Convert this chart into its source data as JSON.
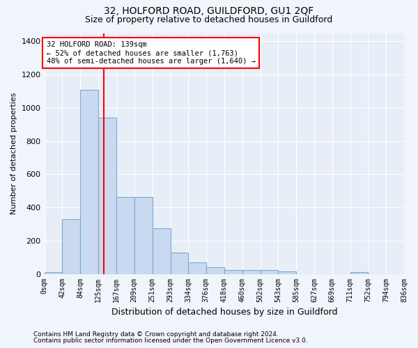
{
  "title": "32, HOLFORD ROAD, GUILDFORD, GU1 2QF",
  "subtitle": "Size of property relative to detached houses in Guildford",
  "xlabel": "Distribution of detached houses by size in Guildford",
  "ylabel": "Number of detached properties",
  "footnote1": "Contains HM Land Registry data © Crown copyright and database right 2024.",
  "footnote2": "Contains public sector information licensed under the Open Government Licence v3.0.",
  "annotation_line1": "32 HOLFORD ROAD: 139sqm",
  "annotation_line2": "← 52% of detached houses are smaller (1,763)",
  "annotation_line3": "48% of semi-detached houses are larger (1,640) →",
  "bar_color": "#c9d9f0",
  "bar_edge_color": "#7aaad4",
  "red_line_x": 139,
  "bin_edges": [
    0,
    42,
    84,
    125,
    167,
    209,
    251,
    293,
    334,
    376,
    418,
    460,
    502,
    543,
    585,
    627,
    669,
    711,
    752,
    794,
    836
  ],
  "bar_heights": [
    10,
    330,
    1110,
    940,
    465,
    465,
    275,
    130,
    70,
    40,
    25,
    25,
    25,
    15,
    0,
    0,
    0,
    10,
    0,
    0
  ],
  "xlim": [
    0,
    836
  ],
  "ylim": [
    0,
    1450
  ],
  "yticks": [
    0,
    200,
    400,
    600,
    800,
    1000,
    1200,
    1400
  ],
  "background_color": "#f0f4fb",
  "plot_bg_color": "#e8eef8",
  "title_fontsize": 10,
  "subtitle_fontsize": 9,
  "ylabel_fontsize": 8,
  "xlabel_fontsize": 9,
  "footnote_fontsize": 6.5,
  "annotation_fontsize": 7.5,
  "xtick_fontsize": 7,
  "ytick_fontsize": 8
}
